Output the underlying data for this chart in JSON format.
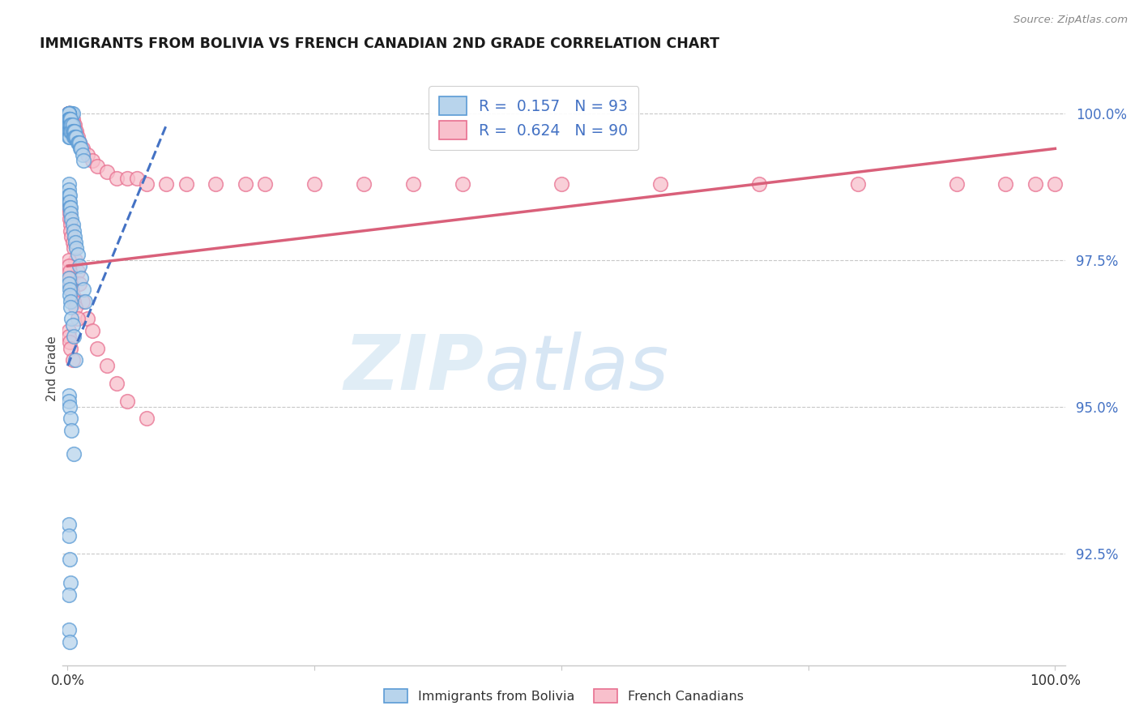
{
  "title": "IMMIGRANTS FROM BOLIVIA VS FRENCH CANADIAN 2ND GRADE CORRELATION CHART",
  "source": "Source: ZipAtlas.com",
  "ylabel": "2nd Grade",
  "yticklabels": [
    "100.0%",
    "97.5%",
    "95.0%",
    "92.5%"
  ],
  "ytick_values": [
    1.0,
    0.975,
    0.95,
    0.925
  ],
  "ymin": 0.906,
  "ymax": 1.007,
  "xmin": -0.005,
  "xmax": 1.01,
  "legend_r_blue": "R =  0.157",
  "legend_n_blue": "N = 93",
  "legend_r_pink": "R =  0.624",
  "legend_n_pink": "N = 90",
  "watermark_zip": "ZIP",
  "watermark_atlas": "atlas",
  "blue_fill": "#b8d4ec",
  "blue_edge": "#5b9bd5",
  "pink_fill": "#f8c0cc",
  "pink_edge": "#e87090",
  "blue_trend_color": "#4472c4",
  "pink_trend_color": "#d9607a",
  "grid_color": "#c8c8c8",
  "tick_color": "#4472c4",
  "title_color": "#1a1a1a",
  "source_color": "#888888",
  "blue_scatter_x": [
    0.002,
    0.002,
    0.002,
    0.003,
    0.003,
    0.003,
    0.003,
    0.004,
    0.004,
    0.005,
    0.001,
    0.001,
    0.001,
    0.001,
    0.001,
    0.001,
    0.001,
    0.001,
    0.001,
    0.001,
    0.001,
    0.001,
    0.001,
    0.001,
    0.001,
    0.002,
    0.002,
    0.002,
    0.002,
    0.002,
    0.003,
    0.003,
    0.003,
    0.004,
    0.004,
    0.005,
    0.005,
    0.006,
    0.006,
    0.007,
    0.007,
    0.008,
    0.009,
    0.01,
    0.011,
    0.012,
    0.013,
    0.014,
    0.015,
    0.016,
    0.001,
    0.001,
    0.001,
    0.001,
    0.002,
    0.002,
    0.002,
    0.003,
    0.003,
    0.004,
    0.005,
    0.006,
    0.007,
    0.008,
    0.009,
    0.01,
    0.012,
    0.014,
    0.016,
    0.018,
    0.001,
    0.001,
    0.002,
    0.002,
    0.003,
    0.003,
    0.004,
    0.005,
    0.006,
    0.008,
    0.001,
    0.001,
    0.002,
    0.003,
    0.004,
    0.006,
    0.001,
    0.001,
    0.002,
    0.003,
    0.001,
    0.001,
    0.002
  ],
  "blue_scatter_y": [
    1.0,
    1.0,
    1.0,
    1.0,
    1.0,
    1.0,
    1.0,
    1.0,
    1.0,
    1.0,
    1.0,
    1.0,
    1.0,
    1.0,
    1.0,
    1.0,
    0.999,
    0.999,
    0.999,
    0.998,
    0.998,
    0.998,
    0.997,
    0.997,
    0.996,
    0.999,
    0.999,
    0.998,
    0.997,
    0.996,
    0.999,
    0.998,
    0.997,
    0.998,
    0.997,
    0.998,
    0.997,
    0.997,
    0.996,
    0.997,
    0.996,
    0.996,
    0.996,
    0.995,
    0.995,
    0.995,
    0.994,
    0.994,
    0.993,
    0.992,
    0.988,
    0.987,
    0.986,
    0.985,
    0.986,
    0.985,
    0.984,
    0.984,
    0.983,
    0.982,
    0.981,
    0.98,
    0.979,
    0.978,
    0.977,
    0.976,
    0.974,
    0.972,
    0.97,
    0.968,
    0.972,
    0.971,
    0.97,
    0.969,
    0.968,
    0.967,
    0.965,
    0.964,
    0.962,
    0.958,
    0.952,
    0.951,
    0.95,
    0.948,
    0.946,
    0.942,
    0.93,
    0.928,
    0.924,
    0.92,
    0.918,
    0.912,
    0.91
  ],
  "pink_scatter_x": [
    0.001,
    0.001,
    0.001,
    0.001,
    0.001,
    0.001,
    0.001,
    0.001,
    0.001,
    0.001,
    0.002,
    0.002,
    0.002,
    0.002,
    0.002,
    0.003,
    0.003,
    0.003,
    0.004,
    0.004,
    0.005,
    0.005,
    0.006,
    0.006,
    0.007,
    0.008,
    0.009,
    0.01,
    0.012,
    0.015,
    0.02,
    0.025,
    0.03,
    0.04,
    0.05,
    0.06,
    0.07,
    0.08,
    0.1,
    0.12,
    0.15,
    0.18,
    0.2,
    0.25,
    0.3,
    0.35,
    0.4,
    0.5,
    0.6,
    0.7,
    0.8,
    0.9,
    0.95,
    0.98,
    1.0,
    0.001,
    0.001,
    0.002,
    0.002,
    0.003,
    0.003,
    0.004,
    0.005,
    0.006,
    0.008,
    0.01,
    0.012,
    0.015,
    0.02,
    0.025,
    0.03,
    0.04,
    0.05,
    0.06,
    0.08,
    0.001,
    0.001,
    0.002,
    0.002,
    0.003,
    0.004,
    0.005,
    0.006,
    0.008,
    0.01,
    0.001,
    0.001,
    0.002,
    0.003,
    0.005
  ],
  "pink_scatter_y": [
    1.0,
    1.0,
    1.0,
    1.0,
    1.0,
    1.0,
    1.0,
    1.0,
    0.999,
    0.999,
    1.0,
    0.999,
    0.999,
    0.998,
    0.997,
    0.999,
    0.998,
    0.997,
    0.999,
    0.998,
    0.999,
    0.998,
    0.998,
    0.997,
    0.998,
    0.997,
    0.997,
    0.996,
    0.995,
    0.994,
    0.993,
    0.992,
    0.991,
    0.99,
    0.989,
    0.989,
    0.989,
    0.988,
    0.988,
    0.988,
    0.988,
    0.988,
    0.988,
    0.988,
    0.988,
    0.988,
    0.988,
    0.988,
    0.988,
    0.988,
    0.988,
    0.988,
    0.988,
    0.988,
    0.988,
    0.985,
    0.984,
    0.983,
    0.982,
    0.981,
    0.98,
    0.979,
    0.978,
    0.977,
    0.975,
    0.973,
    0.971,
    0.968,
    0.965,
    0.963,
    0.96,
    0.957,
    0.954,
    0.951,
    0.948,
    0.975,
    0.974,
    0.973,
    0.972,
    0.971,
    0.97,
    0.969,
    0.968,
    0.967,
    0.965,
    0.963,
    0.962,
    0.961,
    0.96,
    0.958
  ],
  "blue_trend_x": [
    0.0,
    0.1
  ],
  "blue_trend_y": [
    0.957,
    0.998
  ],
  "pink_trend_x": [
    0.0,
    1.0
  ],
  "pink_trend_y": [
    0.974,
    0.994
  ]
}
